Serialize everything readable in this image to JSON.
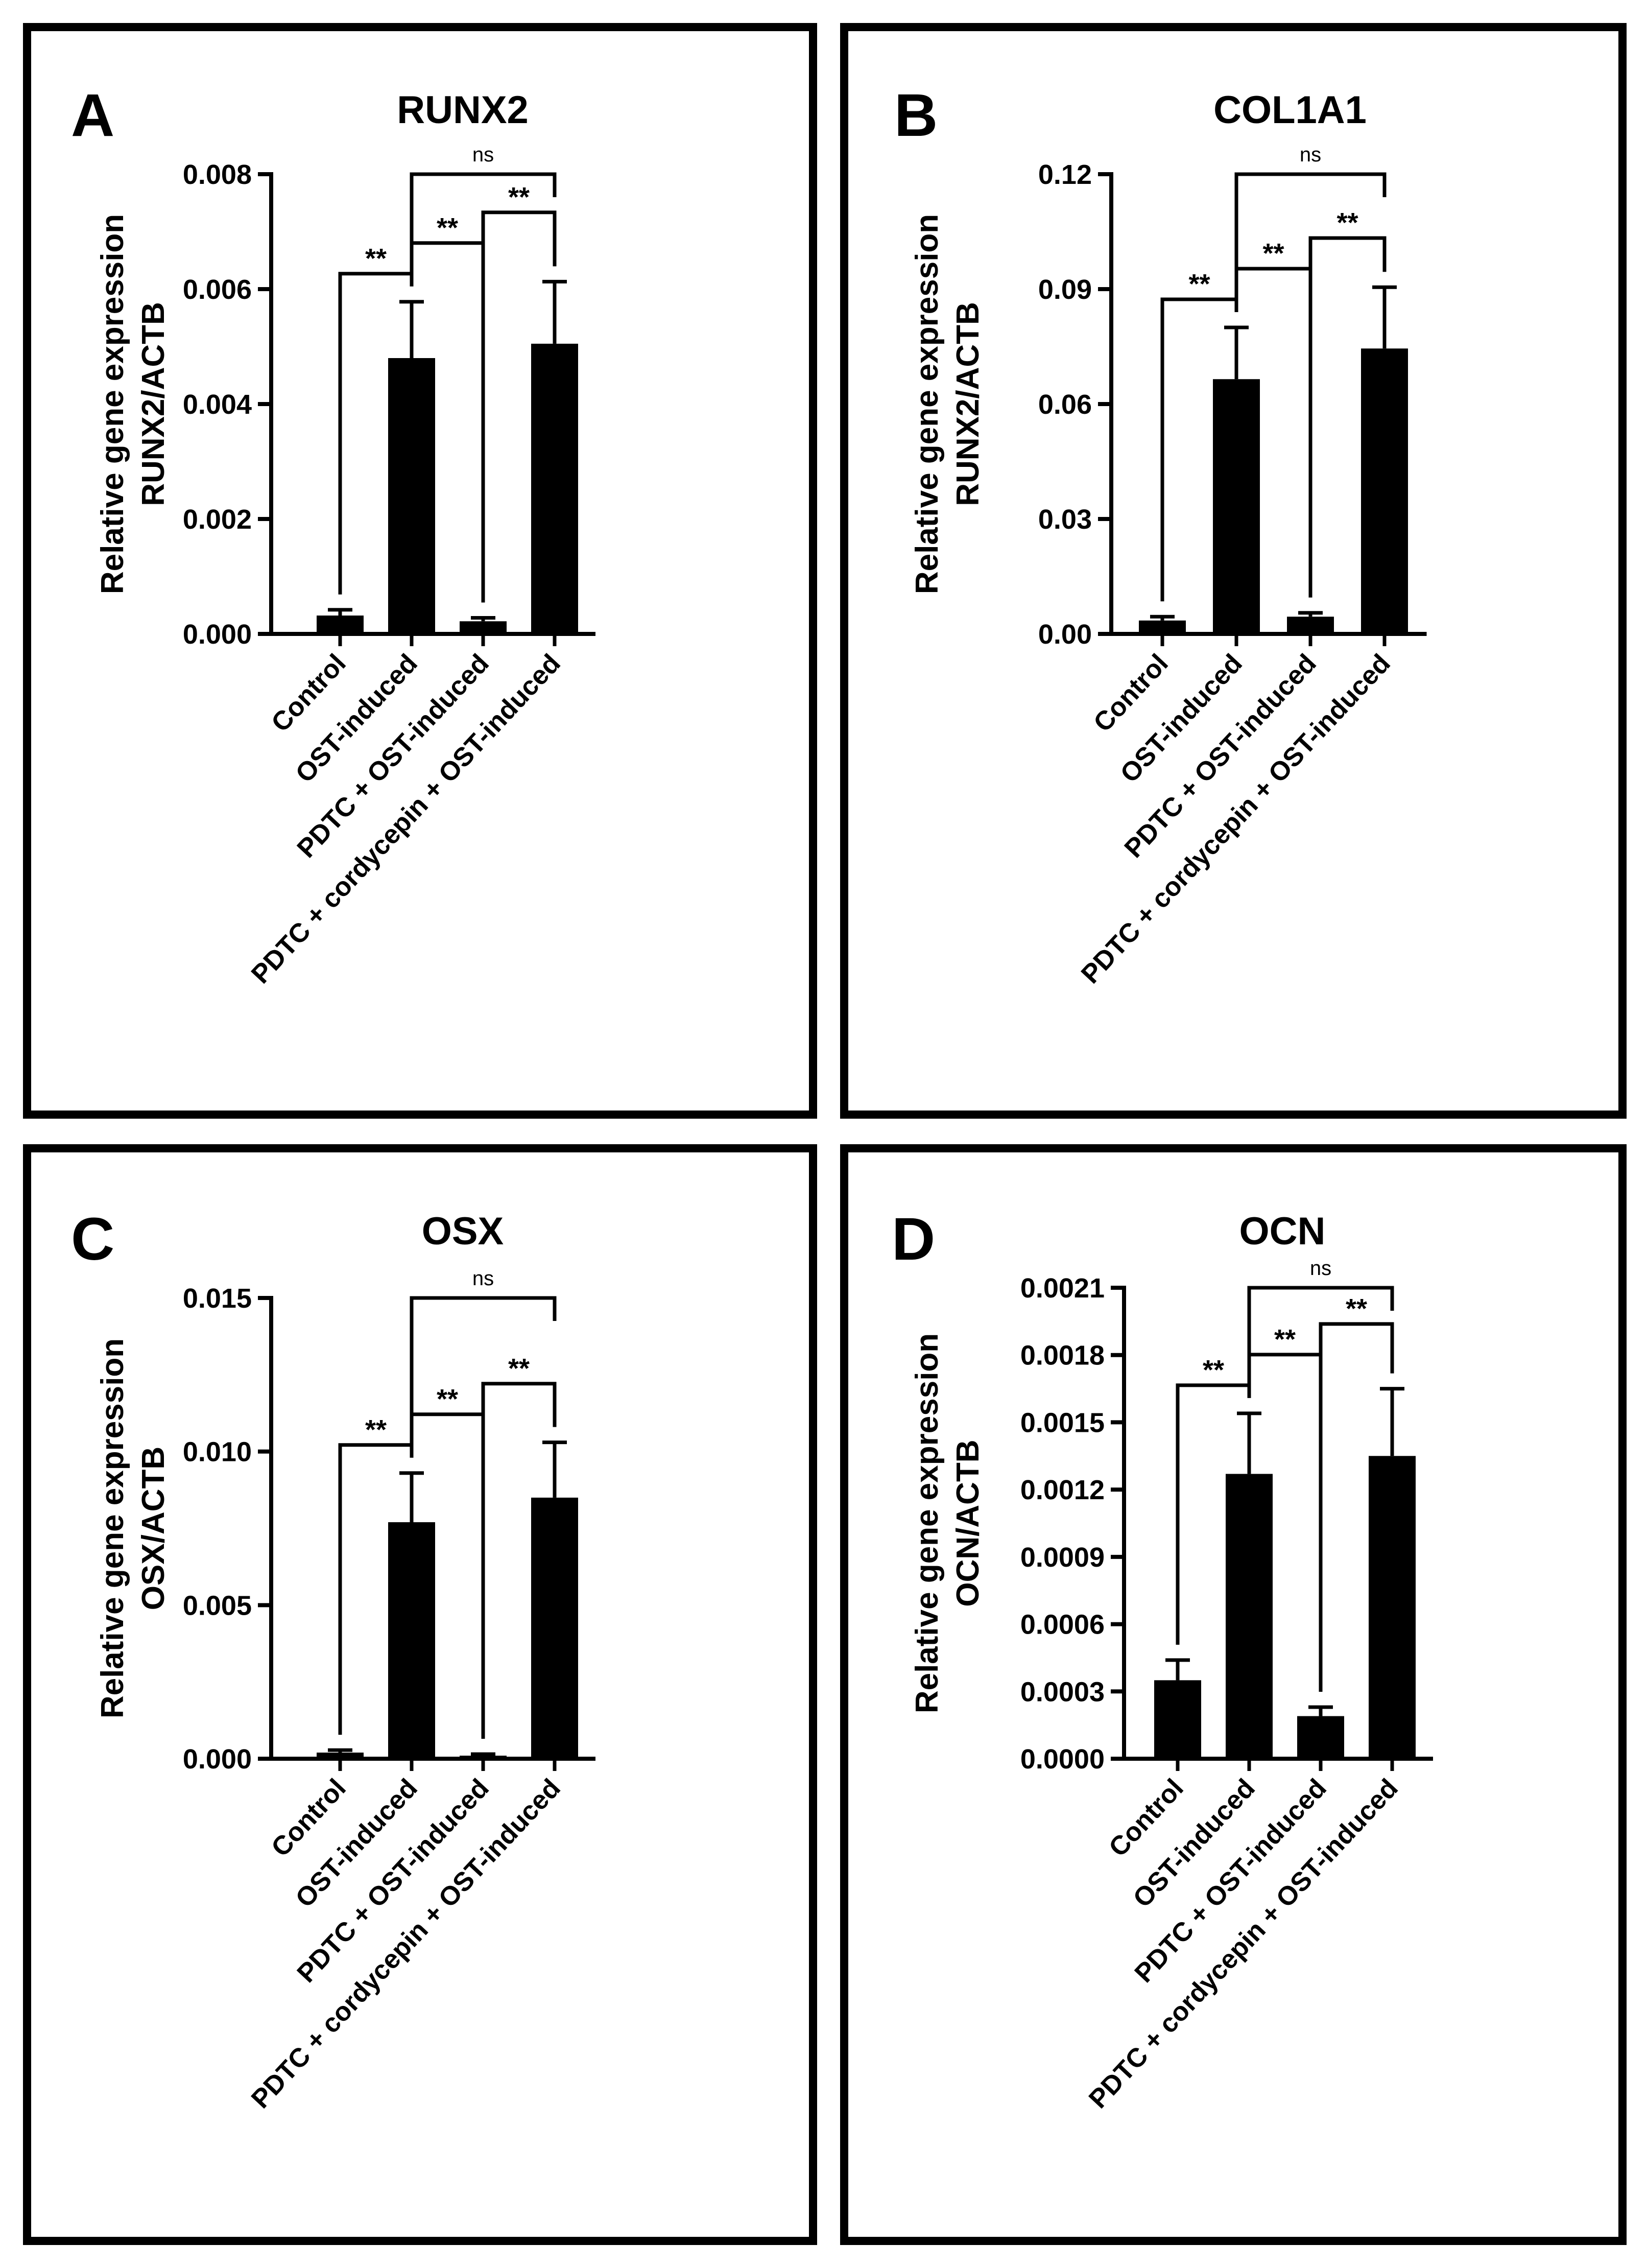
{
  "chart_data": [
    {
      "panel": "A",
      "type": "bar",
      "title": "RUNX2",
      "ylabel": [
        "Relative gene expression",
        "RUNX2/ACTB"
      ],
      "categories": [
        "Control",
        "OST-induced",
        "PDTC + OST-induced",
        "PDTC + cordycepin + OST-induced"
      ],
      "values": [
        0.00032,
        0.0048,
        0.00022,
        0.00505
      ],
      "errors": [
        0.0001,
        0.00098,
        6e-05,
        0.00108
      ],
      "ylim": [
        0,
        0.008
      ],
      "yticks": [
        0,
        0.002,
        0.004,
        0.006,
        0.008
      ],
      "ytick_labels": [
        "0.000",
        "0.002",
        "0.004",
        "0.006",
        "0.008"
      ],
      "significance": [
        {
          "from": 0,
          "to": 1,
          "label": "**",
          "level": 1
        },
        {
          "from": 1,
          "to": 2,
          "label": "**",
          "level": 2
        },
        {
          "from": 2,
          "to": 3,
          "label": "**",
          "level": 3
        },
        {
          "from": 1,
          "to": 3,
          "label": "ns",
          "level": 4
        }
      ]
    },
    {
      "panel": "B",
      "type": "bar",
      "title": "COL1A1",
      "ylabel": [
        "Relative gene expression",
        "RUNX2/ACTB"
      ],
      "categories": [
        "Control",
        "OST-induced",
        "PDTC + OST-induced",
        "PDTC + cordycepin + OST-induced"
      ],
      "values": [
        0.0035,
        0.0665,
        0.0045,
        0.0745
      ],
      "errors": [
        0.001,
        0.0135,
        0.001,
        0.016
      ],
      "ylim": [
        0,
        0.12
      ],
      "yticks": [
        0,
        0.03,
        0.06,
        0.09,
        0.12
      ],
      "ytick_labels": [
        "0.00",
        "0.03",
        "0.06",
        "0.09",
        "0.12"
      ],
      "significance": [
        {
          "from": 0,
          "to": 1,
          "label": "**",
          "level": 1
        },
        {
          "from": 1,
          "to": 2,
          "label": "**",
          "level": 2
        },
        {
          "from": 2,
          "to": 3,
          "label": "**",
          "level": 3
        },
        {
          "from": 1,
          "to": 3,
          "label": "ns",
          "level": 4
        }
      ]
    },
    {
      "panel": "C",
      "type": "bar",
      "title": "OSX",
      "ylabel": [
        "Relative gene expression",
        "OSX/ACTB"
      ],
      "categories": [
        "Control",
        "OST-induced",
        "PDTC + OST-induced",
        "PDTC + cordycepin + OST-induced"
      ],
      "values": [
        0.0002,
        0.0077,
        0.0001,
        0.0085
      ],
      "errors": [
        8e-05,
        0.0016,
        5e-05,
        0.0018
      ],
      "ylim": [
        0,
        0.015
      ],
      "yticks": [
        0,
        0.005,
        0.01,
        0.015
      ],
      "ytick_labels": [
        "0.000",
        "0.005",
        "0.010",
        "0.015"
      ],
      "significance": [
        {
          "from": 0,
          "to": 1,
          "label": "**",
          "level": 1
        },
        {
          "from": 1,
          "to": 2,
          "label": "**",
          "level": 2
        },
        {
          "from": 2,
          "to": 3,
          "label": "**",
          "level": 3
        },
        {
          "from": 1,
          "to": 3,
          "label": "ns",
          "level": 4
        }
      ]
    },
    {
      "panel": "D",
      "type": "bar",
      "title": "OCN",
      "ylabel": [
        "Relative gene expression",
        "OCN/ACTB"
      ],
      "categories": [
        "Control",
        "OST-induced",
        "PDTC + OST-induced",
        "PDTC + cordycepin + OST-induced"
      ],
      "values": [
        0.00035,
        0.00127,
        0.00019,
        0.00135
      ],
      "errors": [
        9e-05,
        0.00027,
        4e-05,
        0.0003
      ],
      "ylim": [
        0,
        0.0021
      ],
      "yticks": [
        0,
        0.0003,
        0.0006,
        0.0009,
        0.0012,
        0.0015,
        0.0018,
        0.0021
      ],
      "ytick_labels": [
        "0.0000",
        "0.0003",
        "0.0006",
        "0.0009",
        "0.0012",
        "0.0015",
        "0.0018",
        "0.0021"
      ],
      "significance": [
        {
          "from": 0,
          "to": 1,
          "label": "**",
          "level": 1
        },
        {
          "from": 1,
          "to": 2,
          "label": "**",
          "level": 2
        },
        {
          "from": 2,
          "to": 3,
          "label": "**",
          "level": 3
        },
        {
          "from": 1,
          "to": 3,
          "label": "ns",
          "level": 4
        }
      ]
    }
  ]
}
